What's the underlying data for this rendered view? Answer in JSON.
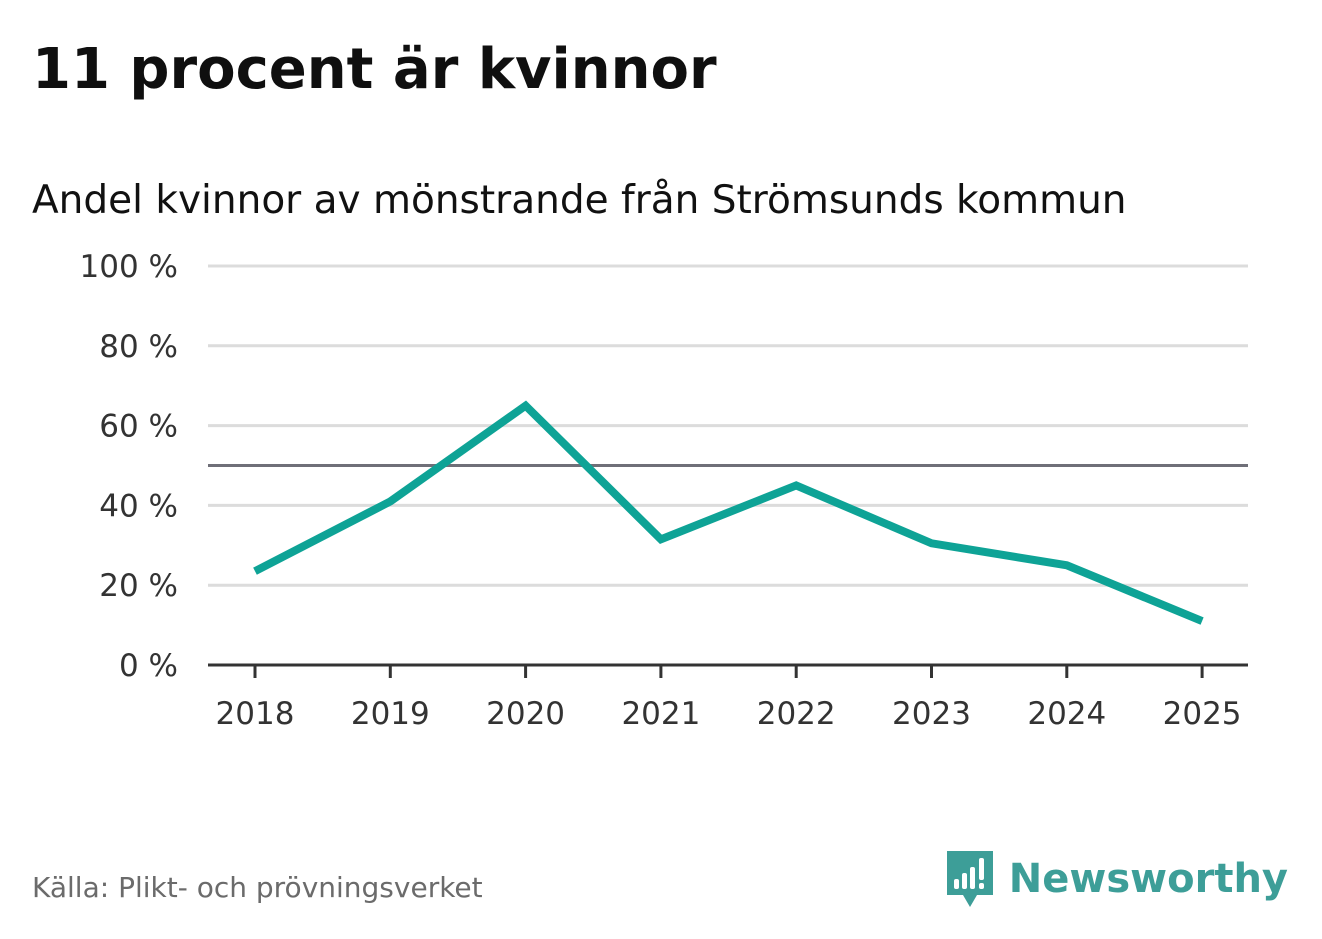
{
  "title": "11 procent är kvinnor",
  "subtitle": "Andel kvinnor av mönstrande från Strömsunds kommun",
  "source": "Källa: Plikt- och prövningsverket",
  "brand": {
    "name": "Newsworthy",
    "color": "#3d9e98",
    "icon": "newsworthy-logo-icon"
  },
  "colors": {
    "line": "#0ea396",
    "gridline": "#dcdcdc",
    "reference_line": "#6f6f78",
    "axis": "#333333"
  },
  "chart_data": {
    "type": "line",
    "title": "11 procent är kvinnor",
    "subtitle": "Andel kvinnor av mönstrande från Strömsunds kommun",
    "xlabel": "",
    "ylabel": "",
    "categories": [
      "2018",
      "2019",
      "2020",
      "2021",
      "2022",
      "2023",
      "2024",
      "2025"
    ],
    "series": [
      {
        "values": [
          23.5,
          41,
          65,
          31.5,
          45,
          30.5,
          25,
          11
        ]
      }
    ],
    "y_ticks": [
      0,
      20,
      40,
      60,
      80,
      100
    ],
    "y_tick_labels": [
      "0 %",
      "20 %",
      "40 %",
      "60 %",
      "80 %",
      "100 %"
    ],
    "ylim": [
      0,
      100
    ],
    "reference_line": 50,
    "grid": true,
    "legend": "none"
  }
}
